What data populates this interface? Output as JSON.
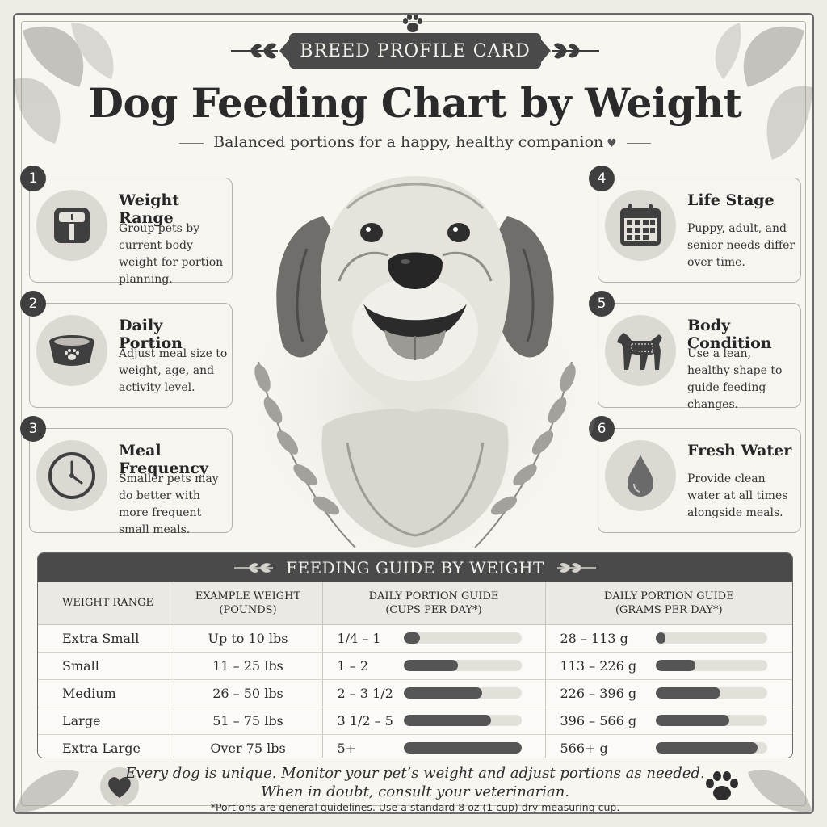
{
  "header": {
    "banner": "BREED PROFILE CARD",
    "title": "Dog Feeding Chart by Weight",
    "subtitle": "Balanced portions for a happy, healthy companion"
  },
  "features": [
    {
      "num": "1",
      "title": "Weight Range",
      "desc": "Group pets by current body weight for portion planning.",
      "icon": "scale-icon"
    },
    {
      "num": "2",
      "title": "Daily Portion",
      "desc": "Adjust meal size to weight, age, and activity level.",
      "icon": "bowl-icon"
    },
    {
      "num": "3",
      "title": "Meal Frequency",
      "desc": "Smaller pets may do better with more frequent small meals.",
      "icon": "clock-icon"
    },
    {
      "num": "4",
      "title": "Life Stage",
      "desc": "Puppy, adult, and senior needs differ over time.",
      "icon": "calendar-icon"
    },
    {
      "num": "5",
      "title": "Body Condition",
      "desc": "Use a lean, healthy shape to guide feeding changes.",
      "icon": "dog-silhouette-icon"
    },
    {
      "num": "6",
      "title": "Fresh Water",
      "desc": "Provide clean water at all times alongside meals.",
      "icon": "water-drop-icon"
    }
  ],
  "table": {
    "title": "FEEDING GUIDE BY WEIGHT",
    "headers": {
      "col1": "WEIGHT RANGE",
      "col2_line1": "EXAMPLE WEIGHT",
      "col2_line2": "(POUNDS)",
      "col3_line1": "DAILY PORTION GUIDE",
      "col3_line2": "(CUPS PER DAY*)",
      "col4_line1": "DAILY PORTION GUIDE",
      "col4_line2": "(GRAMS PER DAY*)"
    },
    "rows": [
      {
        "range": "Extra Small",
        "weight": "Up to 10 lbs",
        "cups": "1/4 – 1",
        "grams": "28 – 113 g",
        "cups_level": 0.14,
        "grams_level": 0.09
      },
      {
        "range": "Small",
        "weight": "11 – 25 lbs",
        "cups": "1 – 2",
        "grams": "113 – 226 g",
        "cups_level": 0.46,
        "grams_level": 0.36
      },
      {
        "range": "Medium",
        "weight": "26 – 50 lbs",
        "cups": "2 – 3 1/2",
        "grams": "226 – 396 g",
        "cups_level": 0.67,
        "grams_level": 0.58
      },
      {
        "range": "Large",
        "weight": "51 – 75 lbs",
        "cups": "3 1/2 – 5",
        "grams": "396 – 566 g",
        "cups_level": 0.74,
        "grams_level": 0.66
      },
      {
        "range": "Extra Large",
        "weight": "Over 75 lbs",
        "cups": "5+",
        "grams": "566+ g",
        "cups_level": 1.0,
        "grams_level": 0.92
      }
    ]
  },
  "footer": {
    "line1": "Every dog is unique. Monitor your pet’s weight and adjust portions as needed.",
    "line2": "When in doubt, consult your veterinarian.",
    "note": "*Portions are general guidelines. Use a standard 8 oz (1 cup) dry measuring cup."
  },
  "colors": {
    "dark": "#4a4a4a",
    "bar": "#555555",
    "track": "#e3e0da",
    "paper": "#f8f6f1"
  }
}
